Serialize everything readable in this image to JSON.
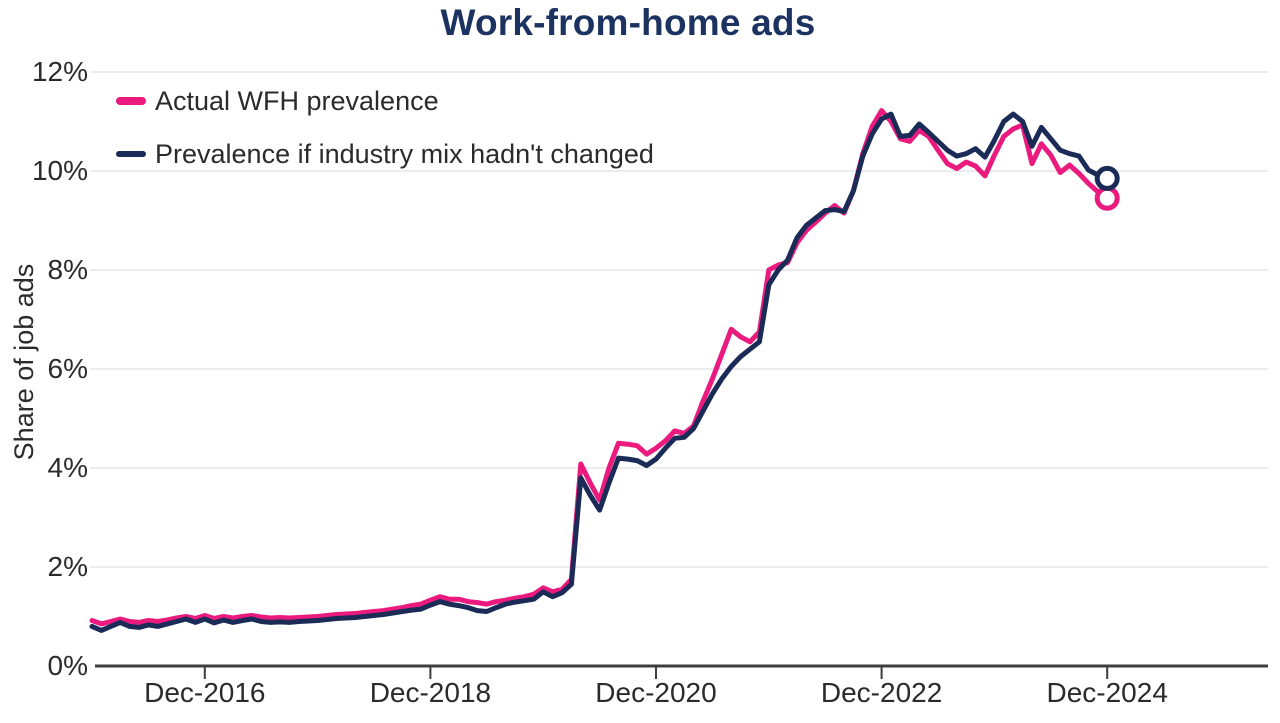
{
  "chart": {
    "title": "Work-from-home ads",
    "ylabel": "Share of job ads",
    "legend": [
      {
        "label": "Actual WFH prevalence"
      },
      {
        "label": "Prevalence if industry mix hadn't changed"
      }
    ]
  },
  "palette": {
    "pink": "#EA1A7F",
    "navy": "#1B2B57",
    "title_navy": "#1C3362",
    "grid": "#ECECEC",
    "axis": "#3D3D3D",
    "label_text": "#2B2B2B"
  },
  "chart_data": {
    "type": "line",
    "title": "Work-from-home ads",
    "xlabel": "",
    "ylabel": "Share of job ads",
    "x_unit": "month",
    "x_start": "Dec-2015",
    "x_end": "Dec-2024",
    "x_tick_labels": [
      "Dec-2016",
      "Dec-2018",
      "Dec-2020",
      "Dec-2022",
      "Dec-2024"
    ],
    "x_tick_indices": [
      12,
      36,
      60,
      84,
      108
    ],
    "ylim": [
      0,
      12
    ],
    "y_tick_values": [
      0,
      2,
      4,
      6,
      8,
      10,
      12
    ],
    "y_tick_labels": [
      "0%",
      "2%",
      "4%",
      "6%",
      "8%",
      "10%",
      "12%"
    ],
    "grid": "horizontal",
    "legend_position": "top-left",
    "end_markers": "open-circle",
    "series": [
      {
        "name": "Actual WFH prevalence",
        "color": "#EA1A7F",
        "values": [
          0.92,
          0.85,
          0.9,
          0.95,
          0.9,
          0.88,
          0.92,
          0.9,
          0.93,
          0.97,
          1.0,
          0.96,
          1.02,
          0.96,
          1.0,
          0.97,
          1.0,
          1.02,
          0.99,
          0.97,
          0.98,
          0.97,
          0.98,
          0.99,
          1.0,
          1.02,
          1.04,
          1.05,
          1.06,
          1.08,
          1.1,
          1.12,
          1.15,
          1.18,
          1.22,
          1.25,
          1.33,
          1.4,
          1.35,
          1.35,
          1.3,
          1.28,
          1.25,
          1.3,
          1.33,
          1.37,
          1.4,
          1.45,
          1.58,
          1.5,
          1.55,
          1.75,
          4.08,
          3.7,
          3.35,
          4.0,
          4.5,
          4.48,
          4.45,
          4.28,
          4.4,
          4.55,
          4.75,
          4.7,
          4.85,
          5.35,
          5.8,
          6.3,
          6.8,
          6.65,
          6.55,
          6.75,
          8.0,
          8.1,
          8.15,
          8.55,
          8.8,
          8.97,
          9.15,
          9.3,
          9.15,
          9.6,
          10.35,
          10.9,
          11.22,
          11.0,
          10.65,
          10.6,
          10.82,
          10.7,
          10.42,
          10.15,
          10.05,
          10.18,
          10.1,
          9.9,
          10.32,
          10.7,
          10.85,
          10.93,
          10.15,
          10.55,
          10.32,
          9.97,
          10.12,
          9.95,
          9.75,
          9.58,
          9.45
        ]
      },
      {
        "name": "Prevalence if industry mix hadn't changed",
        "color": "#1B2B57",
        "values": [
          0.8,
          0.72,
          0.8,
          0.88,
          0.8,
          0.78,
          0.83,
          0.8,
          0.85,
          0.9,
          0.95,
          0.88,
          0.95,
          0.87,
          0.93,
          0.88,
          0.92,
          0.95,
          0.9,
          0.88,
          0.89,
          0.88,
          0.9,
          0.91,
          0.92,
          0.94,
          0.96,
          0.97,
          0.98,
          1.0,
          1.02,
          1.04,
          1.07,
          1.1,
          1.13,
          1.15,
          1.23,
          1.3,
          1.25,
          1.22,
          1.18,
          1.12,
          1.1,
          1.18,
          1.25,
          1.29,
          1.32,
          1.35,
          1.5,
          1.4,
          1.48,
          1.65,
          3.8,
          3.45,
          3.15,
          3.7,
          4.2,
          4.18,
          4.15,
          4.05,
          4.18,
          4.4,
          4.6,
          4.62,
          4.8,
          5.15,
          5.5,
          5.8,
          6.05,
          6.25,
          6.4,
          6.55,
          7.7,
          8.0,
          8.2,
          8.65,
          8.9,
          9.05,
          9.2,
          9.22,
          9.18,
          9.6,
          10.3,
          10.75,
          11.05,
          11.15,
          10.7,
          10.72,
          10.95,
          10.78,
          10.6,
          10.42,
          10.3,
          10.35,
          10.45,
          10.28,
          10.62,
          11.0,
          11.15,
          11.0,
          10.5,
          10.88,
          10.65,
          10.42,
          10.35,
          10.3,
          10.02,
          9.92,
          9.85
        ]
      }
    ]
  }
}
